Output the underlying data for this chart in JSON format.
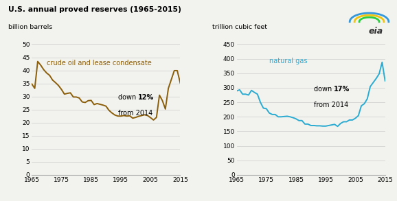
{
  "title": "U.S. annual proved reserves (1965-2015)",
  "oil_ylabel": "billion barrels",
  "gas_ylabel": "trillion cubic feet",
  "oil_label": "crude oil and lease condensate",
  "gas_label": "natural gas",
  "oil_color": "#8B5E0A",
  "gas_color": "#2aabd2",
  "oil_ylim": [
    0,
    50
  ],
  "gas_ylim": [
    0,
    450
  ],
  "oil_yticks": [
    0,
    5,
    10,
    15,
    20,
    25,
    30,
    35,
    40,
    45,
    50
  ],
  "gas_yticks": [
    0,
    50,
    100,
    150,
    200,
    250,
    300,
    350,
    400,
    450
  ],
  "xticks": [
    1965,
    1975,
    1985,
    1995,
    2005,
    2015
  ],
  "oil_years": [
    1965,
    1966,
    1967,
    1968,
    1969,
    1970,
    1971,
    1972,
    1973,
    1974,
    1975,
    1976,
    1977,
    1978,
    1979,
    1980,
    1981,
    1982,
    1983,
    1984,
    1985,
    1986,
    1987,
    1988,
    1989,
    1990,
    1991,
    1992,
    1993,
    1994,
    1995,
    1996,
    1997,
    1998,
    1999,
    2000,
    2001,
    2002,
    2003,
    2004,
    2005,
    2006,
    2007,
    2008,
    2009,
    2010,
    2011,
    2012,
    2013,
    2014,
    2015
  ],
  "oil_values": [
    34.8,
    33.1,
    43.4,
    42.0,
    40.3,
    39.0,
    38.1,
    36.3,
    35.3,
    34.2,
    32.7,
    30.9,
    31.2,
    31.4,
    29.8,
    29.8,
    29.4,
    27.9,
    27.7,
    28.4,
    28.5,
    26.9,
    27.3,
    27.0,
    26.7,
    26.3,
    24.7,
    23.7,
    22.9,
    22.5,
    22.5,
    22.7,
    22.5,
    22.6,
    21.7,
    22.0,
    22.4,
    22.7,
    23.0,
    22.7,
    21.9,
    21.0,
    22.0,
    30.5,
    28.4,
    25.2,
    33.1,
    36.5,
    39.9,
    39.9,
    35.2
  ],
  "gas_years": [
    1965,
    1966,
    1967,
    1968,
    1969,
    1970,
    1971,
    1972,
    1973,
    1974,
    1975,
    1976,
    1977,
    1978,
    1979,
    1980,
    1981,
    1982,
    1983,
    1984,
    1985,
    1986,
    1987,
    1988,
    1989,
    1990,
    1991,
    1992,
    1993,
    1994,
    1995,
    1996,
    1997,
    1998,
    1999,
    2000,
    2001,
    2002,
    2003,
    2004,
    2005,
    2006,
    2007,
    2008,
    2009,
    2010,
    2011,
    2012,
    2013,
    2014,
    2015
  ],
  "gas_values": [
    289,
    293,
    278,
    278,
    275,
    291,
    284,
    278,
    250,
    230,
    228,
    213,
    208,
    208,
    200,
    200,
    201,
    202,
    200,
    197,
    193,
    187,
    187,
    175,
    175,
    170,
    170,
    169,
    169,
    168,
    168,
    170,
    172,
    174,
    167,
    177,
    183,
    183,
    189,
    189,
    195,
    204,
    238,
    245,
    262,
    304,
    318,
    332,
    348,
    388,
    324
  ],
  "background_color": "#f2f2ee",
  "grid_color": "#cccccc",
  "spine_color": "#aaaaaa"
}
